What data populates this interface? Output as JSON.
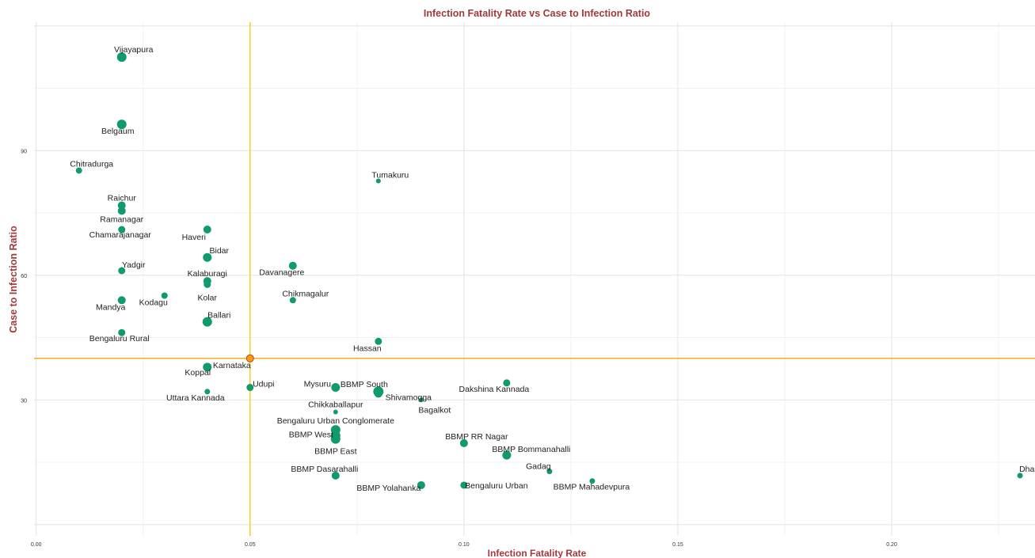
{
  "chart_data": {
    "type": "scatter",
    "title": "Infection Fatality Rate vs Case to Infection Ratio",
    "xlabel": "Infection Fatality Rate",
    "ylabel": "Case to Infection Ratio",
    "xlim": [
      -0.0005,
      0.2335
    ],
    "ylim": [
      -2.7,
      120.9
    ],
    "x_ticks": [
      0.0,
      0.05,
      0.1,
      0.15,
      0.2
    ],
    "x_tick_labels": [
      "0.00",
      "0.05",
      "0.10",
      "0.15",
      "0.20"
    ],
    "y_ticks": [
      30,
      60,
      90
    ],
    "y_tick_labels": [
      "30",
      "60",
      "90"
    ],
    "grid": true,
    "reference_lines": {
      "vertical_x": 0.05,
      "horizontal_y": 40
    },
    "colors": {
      "point": "#119a6a",
      "highlight": "#f29a1a",
      "vline": "#f2d21a",
      "hline": "#f2b01a",
      "title": "#a0393c"
    },
    "points": [
      {
        "name": "Vijayapura",
        "x": 0.02,
        "y": 112.5,
        "size": 6
      },
      {
        "name": "Belgaum",
        "x": 0.02,
        "y": 96.3,
        "size": 6
      },
      {
        "name": "Chitradurga",
        "x": 0.01,
        "y": 85.2,
        "size": 4
      },
      {
        "name": "Tumakuru",
        "x": 0.08,
        "y": 82.7,
        "size": 3
      },
      {
        "name": "Raichur",
        "x": 0.02,
        "y": 76.8,
        "size": 5
      },
      {
        "name": "Ramanagar",
        "x": 0.02,
        "y": 75.5,
        "size": 5
      },
      {
        "name": "Chamarajanagar",
        "x": 0.02,
        "y": 71.0,
        "size": 4.5
      },
      {
        "name": "Haveri",
        "x": 0.04,
        "y": 71.0,
        "size": 5
      },
      {
        "name": "Bidar",
        "x": 0.04,
        "y": 64.3,
        "size": 5.5
      },
      {
        "name": "Davanagere",
        "x": 0.06,
        "y": 62.3,
        "size": 5
      },
      {
        "name": "Yadgir",
        "x": 0.02,
        "y": 61.1,
        "size": 4.5
      },
      {
        "name": "Kalaburagi",
        "x": 0.04,
        "y": 58.6,
        "size": 5
      },
      {
        "name": "Kolar",
        "x": 0.04,
        "y": 57.8,
        "size": 4.5
      },
      {
        "name": "Kodagu",
        "x": 0.03,
        "y": 55.1,
        "size": 4
      },
      {
        "name": "Chikmagalur",
        "x": 0.06,
        "y": 54.0,
        "size": 4
      },
      {
        "name": "Mandya",
        "x": 0.02,
        "y": 54.0,
        "size": 5
      },
      {
        "name": "Ballari",
        "x": 0.04,
        "y": 48.8,
        "size": 6
      },
      {
        "name": "Bengaluru Rural",
        "x": 0.02,
        "y": 46.2,
        "size": 4.5
      },
      {
        "name": "Hassan",
        "x": 0.08,
        "y": 44.1,
        "size": 4.5
      },
      {
        "name": "Karnataka",
        "x": 0.05,
        "y": 40.0,
        "size": 4.5,
        "highlight": true
      },
      {
        "name": "Koppal",
        "x": 0.04,
        "y": 37.9,
        "size": 5.5
      },
      {
        "name": "Dakshina Kannada",
        "x": 0.11,
        "y": 34.1,
        "size": 4.5
      },
      {
        "name": "Udupi",
        "x": 0.05,
        "y": 33.0,
        "size": 4.5
      },
      {
        "name": "Mysuru",
        "x": 0.07,
        "y": 33.0,
        "size": 5.5
      },
      {
        "name": "Uttara Kannada",
        "x": 0.04,
        "y": 32.0,
        "size": 3.5
      },
      {
        "name": "BBMP South",
        "x": 0.08,
        "y": 32.0,
        "size": 6.5
      },
      {
        "name": "Shivamogga",
        "x": 0.08,
        "y": 31.5,
        "size": 5
      },
      {
        "name": "Bagalkot",
        "x": 0.09,
        "y": 30.0,
        "size": 3
      },
      {
        "name": "Chikkaballapur",
        "x": 0.07,
        "y": 27.1,
        "size": 3
      },
      {
        "name": "Bengaluru Urban Conglomerate",
        "x": 0.07,
        "y": 22.8,
        "size": 6
      },
      {
        "name": "BBMP West",
        "x": 0.07,
        "y": 21.4,
        "size": 6
      },
      {
        "name": "BBMP East",
        "x": 0.07,
        "y": 20.6,
        "size": 6
      },
      {
        "name": "BBMP RR Nagar",
        "x": 0.1,
        "y": 19.6,
        "size": 5
      },
      {
        "name": "BBMP Bommanahalli",
        "x": 0.11,
        "y": 16.7,
        "size": 5.5
      },
      {
        "name": "Gadag",
        "x": 0.12,
        "y": 12.8,
        "size": 3.5
      },
      {
        "name": "BBMP Dasarahalli",
        "x": 0.07,
        "y": 11.8,
        "size": 5
      },
      {
        "name": "Dharwad",
        "x": 0.23,
        "y": 11.8,
        "size": 3.5
      },
      {
        "name": "BBMP Mahadevpura",
        "x": 0.13,
        "y": 10.5,
        "size": 3.5
      },
      {
        "name": "BBMP Yolahanka",
        "x": 0.09,
        "y": 9.5,
        "size": 5
      },
      {
        "name": "Bengaluru Urban",
        "x": 0.1,
        "y": 9.5,
        "size": 4.5
      }
    ]
  }
}
